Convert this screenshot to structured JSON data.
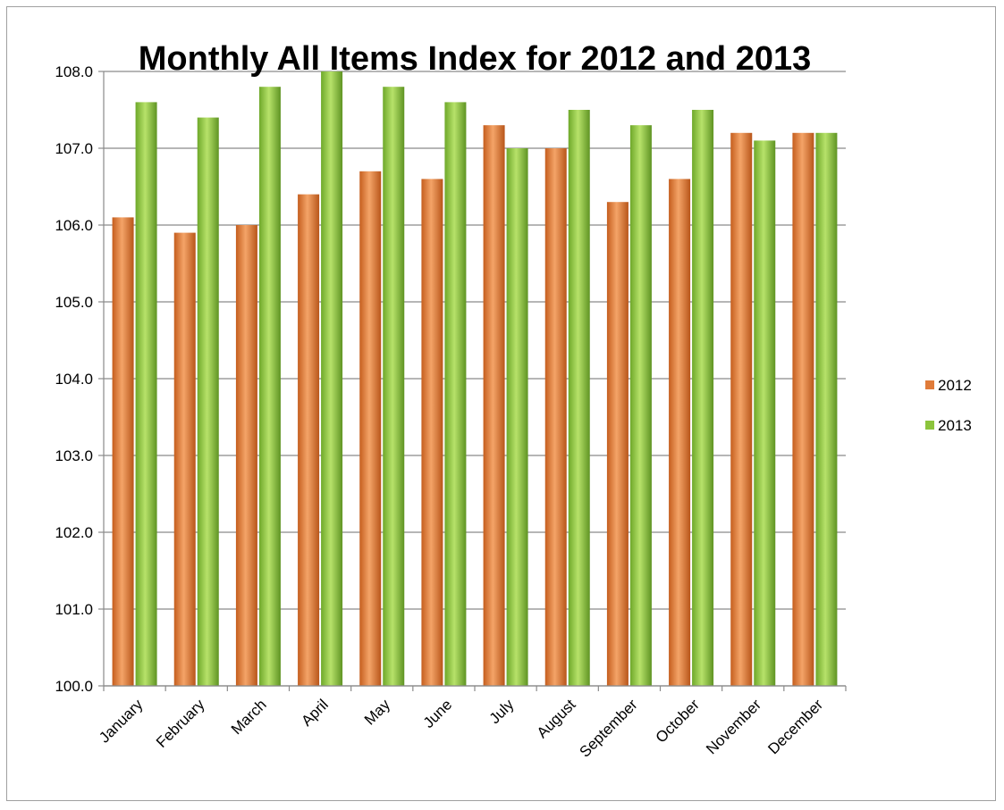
{
  "chart_data": {
    "type": "bar",
    "title": "Monthly All Items Index for 2012 and 2013",
    "xlabel": "",
    "ylabel": "",
    "categories": [
      "January",
      "February",
      "March",
      "April",
      "May",
      "June",
      "July",
      "August",
      "September",
      "October",
      "November",
      "December"
    ],
    "series": [
      {
        "name": "2012",
        "color": "#e07b39",
        "values": [
          106.1,
          105.9,
          106.0,
          106.4,
          106.7,
          106.6,
          107.3,
          107.0,
          106.3,
          106.6,
          107.2,
          107.2
        ]
      },
      {
        "name": "2013",
        "color": "#8cc43c",
        "values": [
          107.6,
          107.4,
          107.8,
          108.0,
          107.8,
          107.6,
          107.0,
          107.5,
          107.3,
          107.5,
          107.1,
          107.2
        ]
      }
    ],
    "ylim": [
      100.0,
      108.0
    ],
    "yticks": [
      "100.0",
      "101.0",
      "102.0",
      "103.0",
      "104.0",
      "105.0",
      "106.0",
      "107.0",
      "108.0"
    ],
    "grid": true,
    "legend": "right"
  }
}
